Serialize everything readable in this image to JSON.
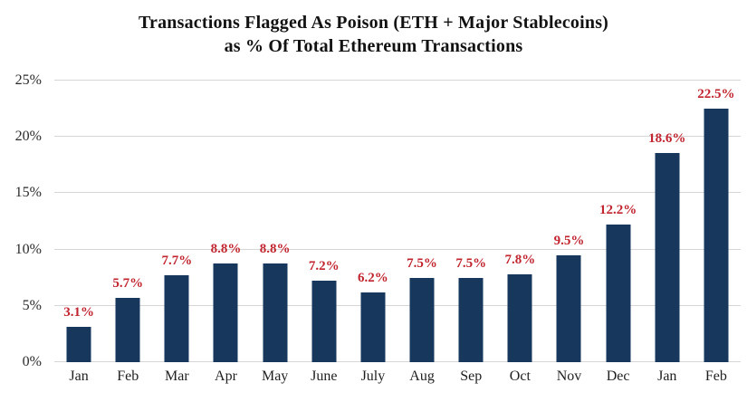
{
  "title": {
    "line1": "Transactions Flagged As Poison (ETH + Major Stablecoins)",
    "line2": "as % Of Total Ethereum Transactions"
  },
  "chart_data": {
    "type": "bar",
    "title": "Transactions Flagged As Poison (ETH + Major Stablecoins) as % Of Total Ethereum Transactions",
    "categories": [
      "Jan",
      "Feb",
      "Mar",
      "Apr",
      "May",
      "June",
      "July",
      "Aug",
      "Sep",
      "Oct",
      "Nov",
      "Dec",
      "Jan",
      "Feb"
    ],
    "values": [
      3.1,
      5.7,
      7.7,
      8.8,
      8.8,
      7.2,
      6.2,
      7.5,
      7.5,
      7.8,
      9.5,
      12.2,
      18.6,
      22.5
    ],
    "data_labels": [
      "3.1%",
      "5.7%",
      "7.7%",
      "8.8%",
      "8.8%",
      "7.2%",
      "6.2%",
      "7.5%",
      "7.5%",
      "7.8%",
      "9.5%",
      "12.2%",
      "18.6%",
      "22.5%"
    ],
    "xlabel": "",
    "ylabel": "",
    "ylim": [
      0,
      25
    ],
    "yticks": [
      0,
      5,
      10,
      15,
      20,
      25
    ],
    "ytick_labels": [
      "0%",
      "5%",
      "10%",
      "15%",
      "20%",
      "25%"
    ],
    "grid": true,
    "legend": false,
    "colors": {
      "bar": "#17375d",
      "data_label": "#c1242f",
      "gridline": "#d6d6d6",
      "axis_text": "#2b2b2b",
      "title_text": "#121212",
      "background": "#ffffff"
    }
  }
}
